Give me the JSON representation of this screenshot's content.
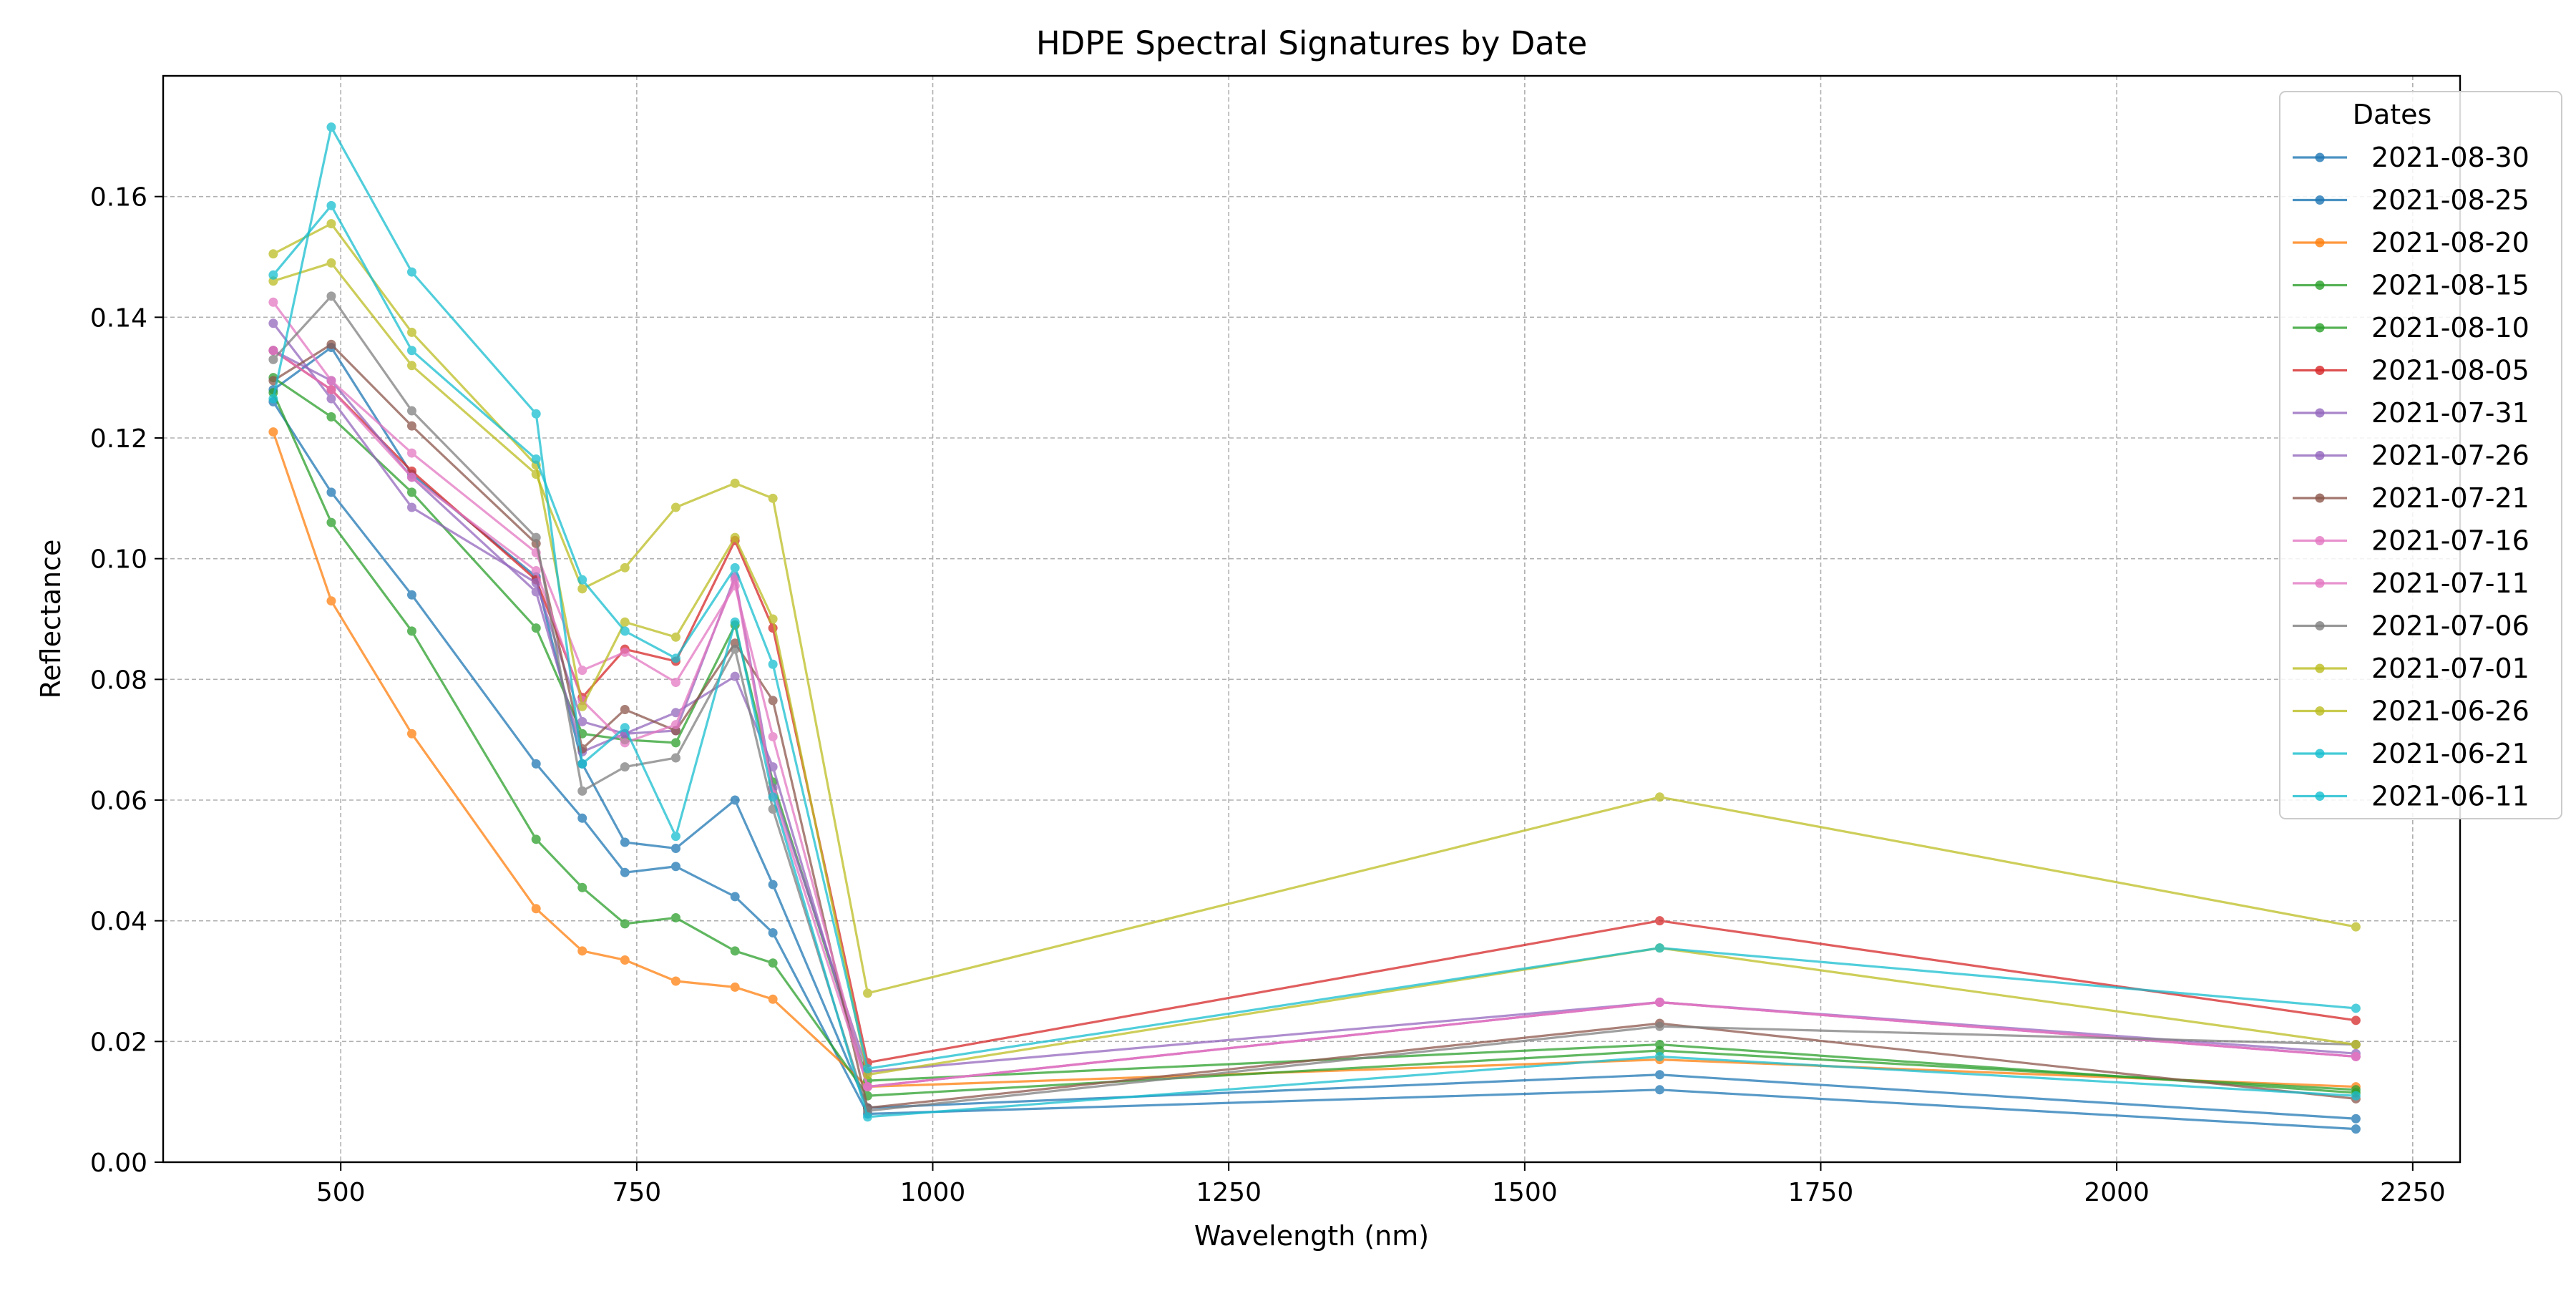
{
  "chart_data": {
    "type": "line",
    "title": "HDPE Spectral Signatures by Date",
    "xlabel": "Wavelength (nm)",
    "ylabel": "Reflectance",
    "xlim": [
      350,
      2290
    ],
    "ylim": [
      0,
      0.18
    ],
    "xticks": [
      500,
      750,
      1000,
      1250,
      1500,
      1750,
      2000,
      2250
    ],
    "xtick_labels": [
      "500",
      "750",
      "1000",
      "1250",
      "1500",
      "1750",
      "2000",
      "2250"
    ],
    "yticks": [
      0,
      0.02,
      0.04,
      0.06,
      0.08,
      0.1,
      0.12,
      0.14,
      0.16
    ],
    "ytick_labels": [
      "0.00",
      "0.02",
      "0.04",
      "0.06",
      "0.08",
      "0.10",
      "0.12",
      "0.14",
      "0.16"
    ],
    "grid": true,
    "legend": {
      "title": "Dates",
      "placement": "top-right"
    },
    "x": [
      443,
      492,
      560,
      665,
      704,
      740,
      783,
      833,
      865,
      945,
      1614,
      2202
    ],
    "series": [
      {
        "name": "2021-08-30",
        "color": "#1f77b4",
        "values": [
          0.126,
          0.111,
          0.094,
          0.066,
          0.057,
          0.048,
          0.049,
          0.044,
          0.038,
          0.008,
          0.012,
          0.0055
        ]
      },
      {
        "name": "2021-08-25",
        "color": "#1f77b4",
        "values": [
          0.128,
          0.135,
          0.114,
          0.097,
          0.066,
          0.053,
          0.052,
          0.06,
          0.046,
          0.009,
          0.0145,
          0.0072
        ]
      },
      {
        "name": "2021-08-20",
        "color": "#ff7f0e",
        "values": [
          0.121,
          0.093,
          0.071,
          0.042,
          0.035,
          0.0335,
          0.03,
          0.029,
          0.027,
          0.0125,
          0.017,
          0.0125
        ]
      },
      {
        "name": "2021-08-15",
        "color": "#2ca02c",
        "values": [
          0.1275,
          0.106,
          0.088,
          0.0535,
          0.0455,
          0.0395,
          0.0405,
          0.035,
          0.033,
          0.011,
          0.0185,
          0.012
        ]
      },
      {
        "name": "2021-08-10",
        "color": "#2ca02c",
        "values": [
          0.13,
          0.1235,
          0.111,
          0.0885,
          0.071,
          0.07,
          0.0695,
          0.089,
          0.063,
          0.0135,
          0.0195,
          0.0115
        ]
      },
      {
        "name": "2021-08-05",
        "color": "#d62728",
        "values": [
          0.1345,
          0.128,
          0.1145,
          0.0965,
          0.077,
          0.085,
          0.083,
          0.103,
          0.0885,
          0.0165,
          0.04,
          0.0235
        ]
      },
      {
        "name": "2021-07-31",
        "color": "#9467bd",
        "values": [
          0.139,
          0.1265,
          0.1085,
          0.096,
          0.073,
          0.071,
          0.0745,
          0.0805,
          0.0655,
          0.0125,
          0.0265,
          0.018
        ]
      },
      {
        "name": "2021-07-26",
        "color": "#9467bd",
        "values": [
          0.1345,
          0.1295,
          0.1135,
          0.0945,
          0.068,
          0.071,
          0.0715,
          0.097,
          0.062,
          0.015,
          0.0265,
          0.0175
        ]
      },
      {
        "name": "2021-07-21",
        "color": "#8c564b",
        "values": [
          0.1295,
          0.1355,
          0.122,
          0.1025,
          0.0685,
          0.075,
          0.0715,
          0.086,
          0.0765,
          0.009,
          0.023,
          0.0105
        ]
      },
      {
        "name": "2021-07-16",
        "color": "#e377c2",
        "values": [
          0.1425,
          0.1295,
          0.1175,
          0.101,
          0.0815,
          0.0845,
          0.0795,
          0.0955,
          0.0705,
          0.0125,
          0.0265,
          0.0175
        ]
      },
      {
        "name": "2021-07-11",
        "color": "#e377c2",
        "values": [
          0.1345,
          0.128,
          0.1135,
          0.098,
          0.0765,
          0.0695,
          0.0725,
          0.0965,
          0.061,
          0.0125,
          0.0265,
          0.0175
        ]
      },
      {
        "name": "2021-07-06",
        "color": "#7f7f7f",
        "values": [
          0.133,
          0.1435,
          0.1245,
          0.1035,
          0.0615,
          0.0655,
          0.067,
          0.085,
          0.0585,
          0.0085,
          0.0225,
          0.0195
        ]
      },
      {
        "name": "2021-07-01",
        "color": "#bcbd22",
        "values": [
          0.1505,
          0.1555,
          0.1375,
          0.1155,
          0.0755,
          0.0895,
          0.087,
          0.1035,
          0.09,
          0.0145,
          0.0355,
          0.0195
        ]
      },
      {
        "name": "2021-06-26",
        "color": "#bcbd22",
        "values": [
          0.146,
          0.149,
          0.132,
          0.114,
          0.095,
          0.0985,
          0.1085,
          0.1125,
          0.11,
          0.028,
          0.0605,
          0.039
        ]
      },
      {
        "name": "2021-06-21",
        "color": "#17becf",
        "values": [
          0.147,
          0.1585,
          0.1345,
          0.1165,
          0.0965,
          0.088,
          0.0835,
          0.0985,
          0.0825,
          0.0155,
          0.0355,
          0.0255
        ]
      },
      {
        "name": "2021-06-11",
        "color": "#17becf",
        "values": [
          0.1265,
          0.1715,
          0.1475,
          0.124,
          0.066,
          0.072,
          0.054,
          0.0895,
          0.0605,
          0.0075,
          0.0175,
          0.011
        ]
      }
    ]
  }
}
